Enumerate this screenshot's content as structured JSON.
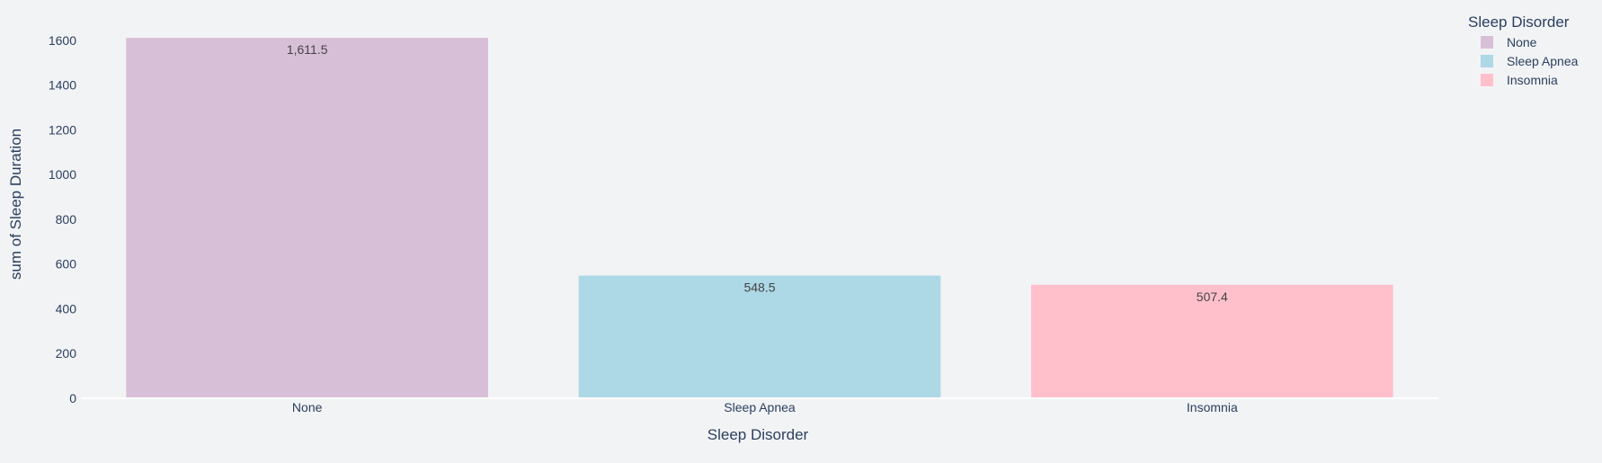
{
  "chart_data": {
    "type": "bar",
    "categories": [
      "None",
      "Sleep Apnea",
      "Insomnia"
    ],
    "values": [
      1611.5,
      548.5,
      507.4
    ],
    "data_labels": [
      "1,611.5",
      "548.5",
      "507.4"
    ],
    "colors": [
      "#d8bfd8",
      "#add8e6",
      "#ffc0cb"
    ],
    "xlabel": "Sleep Disorder",
    "ylabel": "sum of Sleep Duration",
    "ylim": [
      0,
      1696.3
    ],
    "yticks": [
      0,
      200,
      400,
      600,
      800,
      1000,
      1200,
      1400,
      1600
    ],
    "grid": false,
    "legend": {
      "title": "Sleep Disorder",
      "placement": "top-right",
      "entries": [
        "None",
        "Sleep Apnea",
        "Insomnia"
      ]
    }
  },
  "colors": {
    "background": "#f2f3f5",
    "text": "#2a3f5f",
    "zeroline": "#ffffff"
  }
}
